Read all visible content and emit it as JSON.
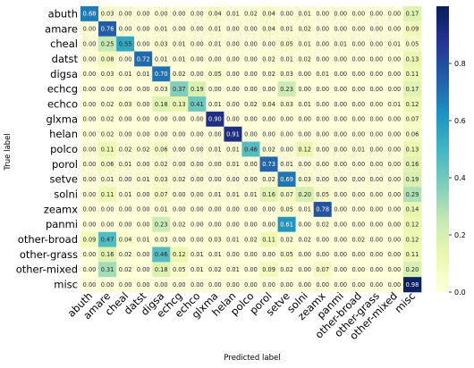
{
  "chart_data": {
    "type": "heatmap",
    "title": "",
    "xlabel": "Predicted label",
    "ylabel": "True label",
    "x_categories": [
      "abuth",
      "amare",
      "cheal",
      "datst",
      "digsa",
      "echcg",
      "echco",
      "glxma",
      "helan",
      "polco",
      "porol",
      "setve",
      "solni",
      "zeamx",
      "panmi",
      "other-broad",
      "other-grass",
      "other-mixed",
      "misc"
    ],
    "y_categories": [
      "abuth",
      "amare",
      "cheal",
      "datst",
      "digsa",
      "echcg",
      "echco",
      "glxma",
      "helan",
      "polco",
      "porol",
      "setve",
      "solni",
      "zeamx",
      "panmi",
      "other-broad",
      "other-grass",
      "other-mixed",
      "misc"
    ],
    "values": [
      [
        0.68,
        0.03,
        0.0,
        0.0,
        0.0,
        0.0,
        0.0,
        0.04,
        0.01,
        0.02,
        0.04,
        0.0,
        0.01,
        0.0,
        0.0,
        0.0,
        0.0,
        0.0,
        0.17
      ],
      [
        0.0,
        0.76,
        0.0,
        0.0,
        0.01,
        0.0,
        0.0,
        0.01,
        0.0,
        0.0,
        0.04,
        0.01,
        0.02,
        0.0,
        0.0,
        0.0,
        0.0,
        0.0,
        0.09
      ],
      [
        0.0,
        0.25,
        0.55,
        0.0,
        0.03,
        0.01,
        0.0,
        0.01,
        0.0,
        0.0,
        0.0,
        0.05,
        0.01,
        0.0,
        0.01,
        0.0,
        0.0,
        0.01,
        0.05
      ],
      [
        0.0,
        0.08,
        0.0,
        0.72,
        0.01,
        0.01,
        0.0,
        0.0,
        0.0,
        0.0,
        0.02,
        0.01,
        0.02,
        0.0,
        0.0,
        0.0,
        0.0,
        0.0,
        0.13
      ],
      [
        0.0,
        0.03,
        0.01,
        0.01,
        0.7,
        0.02,
        0.0,
        0.05,
        0.0,
        0.0,
        0.02,
        0.03,
        0.0,
        0.01,
        0.0,
        0.0,
        0.0,
        0.0,
        0.11
      ],
      [
        0.0,
        0.0,
        0.0,
        0.0,
        0.03,
        0.37,
        0.19,
        0.0,
        0.0,
        0.0,
        0.0,
        0.23,
        0.0,
        0.0,
        0.0,
        0.0,
        0.0,
        0.0,
        0.17
      ],
      [
        0.0,
        0.02,
        0.03,
        0.0,
        0.18,
        0.13,
        0.41,
        0.01,
        0.0,
        0.02,
        0.04,
        0.03,
        0.01,
        0.0,
        0.0,
        0.0,
        0.0,
        0.01,
        0.12
      ],
      [
        0.0,
        0.02,
        0.0,
        0.0,
        0.0,
        0.0,
        0.0,
        0.9,
        0.0,
        0.0,
        0.0,
        0.0,
        0.0,
        0.0,
        0.0,
        0.0,
        0.0,
        0.0,
        0.07
      ],
      [
        0.0,
        0.02,
        0.0,
        0.0,
        0.0,
        0.0,
        0.0,
        0.0,
        0.91,
        0.0,
        0.0,
        0.0,
        0.0,
        0.0,
        0.0,
        0.0,
        0.0,
        0.0,
        0.06
      ],
      [
        0.0,
        0.11,
        0.02,
        0.02,
        0.06,
        0.0,
        0.0,
        0.01,
        0.01,
        0.46,
        0.02,
        0.0,
        0.12,
        0.0,
        0.0,
        0.01,
        0.0,
        0.0,
        0.13
      ],
      [
        0.0,
        0.06,
        0.01,
        0.0,
        0.02,
        0.0,
        0.0,
        0.0,
        0.01,
        0.0,
        0.73,
        0.01,
        0.0,
        0.0,
        0.0,
        0.0,
        0.0,
        0.0,
        0.16
      ],
      [
        0.0,
        0.01,
        0.0,
        0.01,
        0.03,
        0.02,
        0.0,
        0.0,
        0.0,
        0.0,
        0.02,
        0.69,
        0.03,
        0.0,
        0.0,
        0.0,
        0.0,
        0.0,
        0.19
      ],
      [
        0.0,
        0.11,
        0.01,
        0.0,
        0.07,
        0.0,
        0.0,
        0.01,
        0.01,
        0.01,
        0.16,
        0.07,
        0.2,
        0.05,
        0.0,
        0.0,
        0.0,
        0.0,
        0.29
      ],
      [
        0.0,
        0.0,
        0.0,
        0.0,
        0.01,
        0.0,
        0.0,
        0.0,
        0.0,
        0.0,
        0.0,
        0.05,
        0.01,
        0.78,
        0.0,
        0.0,
        0.0,
        0.0,
        0.14
      ],
      [
        0.0,
        0.0,
        0.0,
        0.0,
        0.23,
        0.02,
        0.0,
        0.0,
        0.0,
        0.0,
        0.0,
        0.61,
        0.0,
        0.02,
        0.0,
        0.0,
        0.0,
        0.0,
        0.12
      ],
      [
        0.09,
        0.47,
        0.04,
        0.01,
        0.03,
        0.0,
        0.0,
        0.03,
        0.01,
        0.02,
        0.11,
        0.02,
        0.02,
        0.0,
        0.0,
        0.02,
        0.0,
        0.0,
        0.12
      ],
      [
        0.0,
        0.16,
        0.02,
        0.0,
        0.46,
        0.12,
        0.01,
        0.01,
        0.0,
        0.0,
        0.0,
        0.05,
        0.0,
        0.0,
        0.0,
        0.0,
        0.0,
        0.0,
        0.11
      ],
      [
        0.0,
        0.31,
        0.02,
        0.0,
        0.18,
        0.05,
        0.01,
        0.02,
        0.01,
        0.0,
        0.09,
        0.02,
        0.0,
        0.07,
        0.0,
        0.0,
        0.0,
        0.0,
        0.2
      ],
      [
        0.0,
        0.0,
        0.0,
        0.0,
        0.0,
        0.0,
        0.0,
        0.0,
        0.0,
        0.0,
        0.0,
        0.0,
        0.0,
        0.0,
        0.0,
        0.0,
        0.0,
        0.0,
        0.98
      ]
    ],
    "value_range": [
      0,
      1
    ],
    "colormap": "YlGnBu",
    "colormap_stops": [
      "#ffffd9",
      "#edf8b1",
      "#c7e9b4",
      "#7fcdbb",
      "#41b6c4",
      "#1d91c0",
      "#225ea8",
      "#253494",
      "#081d58"
    ],
    "colorbar": {
      "ticks": [
        0.0,
        0.2,
        0.4,
        0.6,
        0.8
      ],
      "tick_labels": [
        "0.0",
        "0.2",
        "0.4",
        "0.6",
        "0.8"
      ],
      "position": "right"
    },
    "grid": false,
    "legend": "none"
  }
}
